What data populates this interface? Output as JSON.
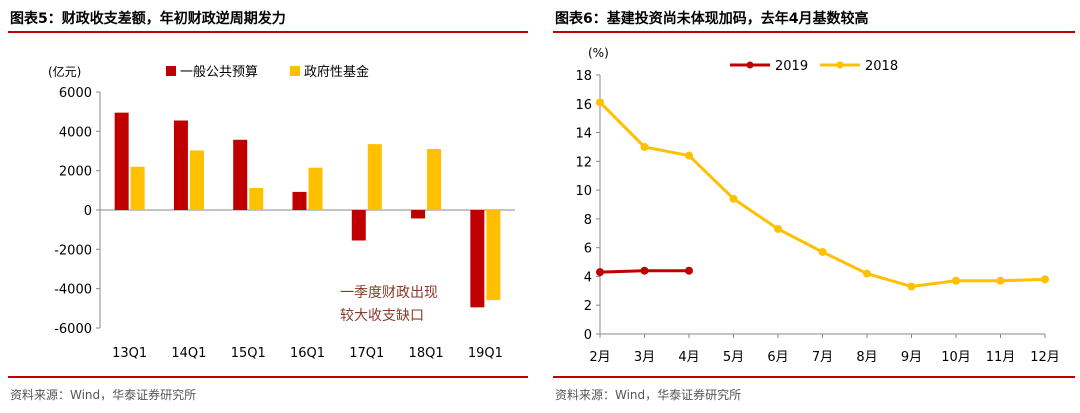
{
  "chart_data": [
    {
      "type": "bar",
      "title": "图表5：财政收支差额，年初财政逆周期发力",
      "unit_label": "(亿元)",
      "categories": [
        "13Q1",
        "14Q1",
        "15Q1",
        "16Q1",
        "17Q1",
        "18Q1",
        "19Q1"
      ],
      "series": [
        {
          "name": "一般公共预算",
          "color": "#c00000",
          "values": [
            4950,
            4550,
            3570,
            920,
            -1550,
            -430,
            -4950
          ]
        },
        {
          "name": "政府性基金",
          "color": "#ffc000",
          "values": [
            2200,
            3030,
            1120,
            2150,
            3350,
            3100,
            -4580
          ]
        }
      ],
      "ylim": [
        -6000,
        6000
      ],
      "yticks": [
        6000,
        4000,
        2000,
        0,
        -2000,
        -4000,
        -6000
      ],
      "ytick_labels": [
        "6000",
        "4000",
        "2000",
        "0",
        "-2000",
        "-4000",
        "-6000"
      ],
      "annotation": [
        "一季度财政出现",
        "较大收支缺口"
      ],
      "annotation_color": "#8b3a2a",
      "legend_position": "top",
      "source": "资料来源：Wind，华泰证券研究所"
    },
    {
      "type": "line",
      "title": "图表6：基建投资尚未体现加码，去年4月基数较高",
      "unit_label": "(%)",
      "categories": [
        "2月",
        "3月",
        "4月",
        "5月",
        "6月",
        "7月",
        "8月",
        "9月",
        "10月",
        "11月",
        "12月"
      ],
      "series": [
        {
          "name": "2019",
          "color": "#c00000",
          "values": [
            4.3,
            4.4,
            4.4,
            null,
            null,
            null,
            null,
            null,
            null,
            null,
            null
          ]
        },
        {
          "name": "2018",
          "color": "#ffc000",
          "values": [
            16.1,
            13.0,
            12.4,
            9.4,
            7.3,
            5.7,
            4.2,
            3.3,
            3.7,
            3.7,
            3.8
          ]
        }
      ],
      "ylim": [
        0,
        18
      ],
      "yticks": [
        0,
        2,
        4,
        6,
        8,
        10,
        12,
        14,
        16,
        18
      ],
      "ytick_labels": [
        "0",
        "2",
        "4",
        "6",
        "8",
        "10",
        "12",
        "14",
        "16",
        "18"
      ],
      "legend_position": "top",
      "source": "资料来源：Wind，华泰证券研究所"
    }
  ]
}
